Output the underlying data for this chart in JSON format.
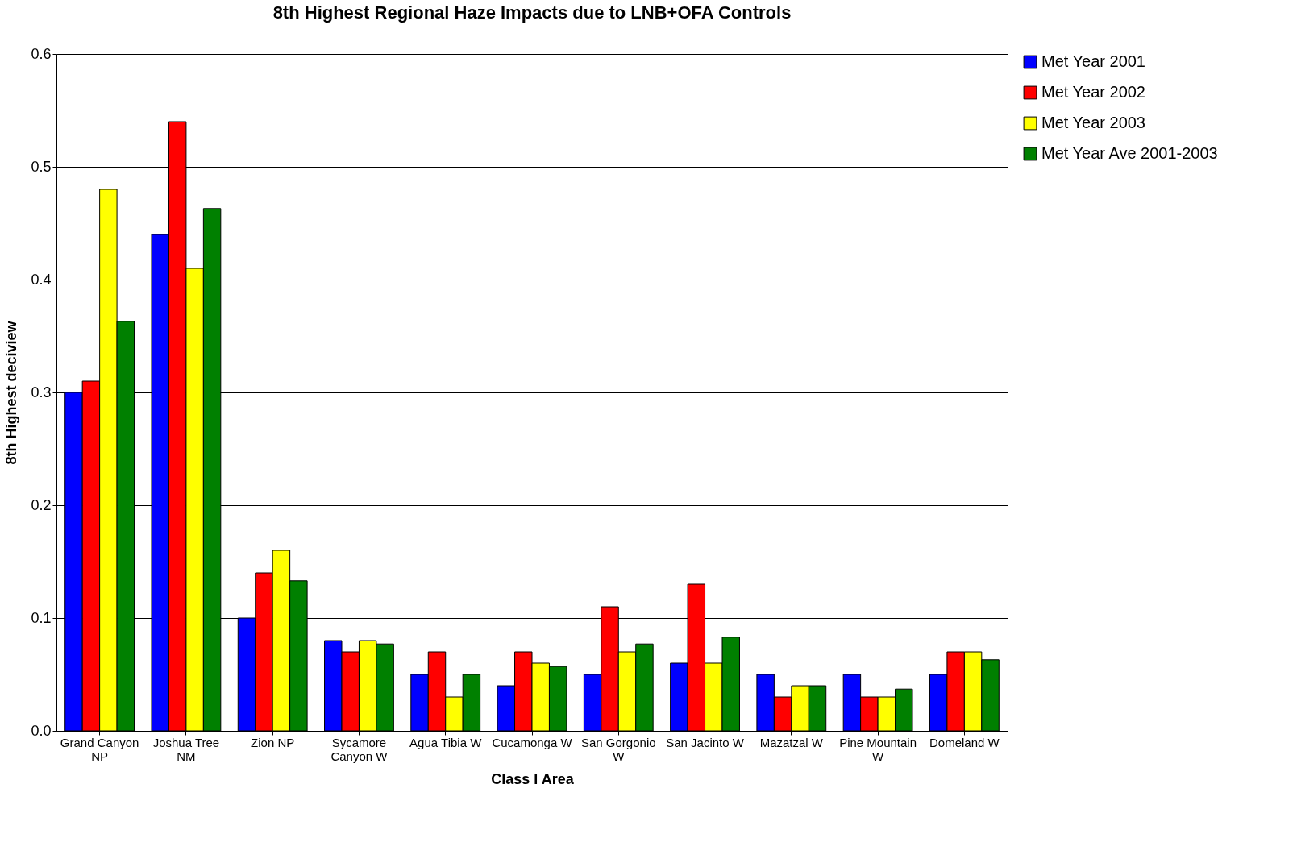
{
  "chart_data": {
    "type": "bar",
    "title": "8th Highest Regional Haze Impacts due to LNB+OFA Controls",
    "xlabel": "Class I Area",
    "ylabel": "8th Highest deciview",
    "categories": [
      "Grand Canyon NP",
      "Joshua Tree NM",
      "Zion NP",
      "Sycamore Canyon W",
      "Agua Tibia W",
      "Cucamonga W",
      "San Gorgonio W",
      "San Jacinto W",
      "Mazatzal W",
      "Pine Mountain W",
      "Domeland W"
    ],
    "series": [
      {
        "name": "Met Year 2001",
        "color": "#0000ff",
        "values": [
          0.3,
          0.44,
          0.1,
          0.08,
          0.05,
          0.04,
          0.05,
          0.06,
          0.05,
          0.05,
          0.05
        ]
      },
      {
        "name": "Met Year 2002",
        "color": "#ff0000",
        "values": [
          0.31,
          0.54,
          0.14,
          0.07,
          0.07,
          0.07,
          0.11,
          0.13,
          0.03,
          0.03,
          0.07
        ]
      },
      {
        "name": "Met Year 2003",
        "color": "#ffff00",
        "values": [
          0.48,
          0.41,
          0.16,
          0.08,
          0.03,
          0.06,
          0.07,
          0.06,
          0.04,
          0.03,
          0.07
        ]
      },
      {
        "name": "Met Year Ave 2001-2003",
        "color": "#008000",
        "values": [
          0.363,
          0.463,
          0.133,
          0.077,
          0.05,
          0.057,
          0.077,
          0.083,
          0.04,
          0.037,
          0.063
        ]
      }
    ],
    "ylim": [
      0,
      0.6
    ],
    "yticks": [
      {
        "value": 0,
        "label": "0.0"
      },
      0.1,
      0.2,
      0.3,
      0.4,
      0.5,
      0.6
    ],
    "grid": "y",
    "legend": "top right"
  }
}
